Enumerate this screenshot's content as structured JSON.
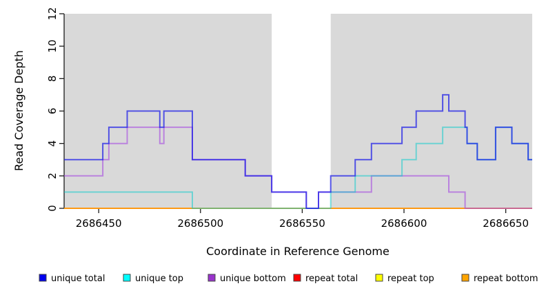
{
  "chart_data": {
    "type": "line",
    "subtype": "step-coverage-plot",
    "title": "",
    "xlabel": "Coordinate in Reference Genome",
    "ylabel": "Read Coverage Depth",
    "xlim": [
      2686433,
      2686663
    ],
    "ylim": [
      0,
      12
    ],
    "x_ticks": [
      2686450,
      2686500,
      2686550,
      2686600,
      2686650
    ],
    "y_ticks": [
      0,
      2,
      4,
      6,
      8,
      10,
      12
    ],
    "grid": "off",
    "legend_position": "bottom",
    "background_color": "#ffffff",
    "shaded_region_color": "#d9d9d9",
    "shaded_regions": [
      {
        "x0": 2686433,
        "x1": 2686535
      },
      {
        "x0": 2686564,
        "x1": 2686663
      }
    ],
    "series": [
      {
        "name": "repeat top",
        "color": "#f0f000",
        "opacity": 1,
        "steps": [
          [
            2686433,
            0
          ]
        ]
      },
      {
        "name": "repeat total",
        "color": "#e00000",
        "opacity": 1,
        "steps": [
          [
            2686433,
            0
          ]
        ]
      },
      {
        "name": "repeat bottom",
        "color": "#ff9912",
        "opacity": 1,
        "steps": [
          [
            2686433,
            0
          ]
        ]
      },
      {
        "name": "unique bottom",
        "color": "#a64ce0",
        "opacity": 0.62,
        "steps": [
          [
            2686433,
            2
          ],
          [
            2686452,
            3
          ],
          [
            2686455,
            4
          ],
          [
            2686464,
            5
          ],
          [
            2686480,
            4
          ],
          [
            2686482,
            5
          ],
          [
            2686496,
            3
          ],
          [
            2686522,
            2
          ],
          [
            2686535,
            1
          ],
          [
            2686552,
            0
          ],
          [
            2686558,
            1
          ],
          [
            2686584,
            2
          ],
          [
            2686622,
            1
          ],
          [
            2686630,
            0
          ]
        ]
      },
      {
        "name": "unique top",
        "color": "#00cccc",
        "opacity": 0.5,
        "steps": [
          [
            2686433,
            1
          ],
          [
            2686496,
            0
          ],
          [
            2686564,
            1
          ],
          [
            2686576,
            2
          ],
          [
            2686599,
            3
          ],
          [
            2686606,
            4
          ],
          [
            2686619,
            5
          ],
          [
            2686631,
            4
          ],
          [
            2686636,
            3
          ],
          [
            2686645,
            5
          ],
          [
            2686653,
            4
          ],
          [
            2686661,
            3
          ]
        ]
      },
      {
        "name": "unique total",
        "color": "#1c1ce8",
        "opacity": 0.72,
        "steps": [
          [
            2686433,
            3
          ],
          [
            2686452,
            4
          ],
          [
            2686455,
            5
          ],
          [
            2686464,
            6
          ],
          [
            2686480,
            5
          ],
          [
            2686482,
            6
          ],
          [
            2686496,
            3
          ],
          [
            2686522,
            2
          ],
          [
            2686535,
            1
          ],
          [
            2686552,
            0
          ],
          [
            2686558,
            1
          ],
          [
            2686564,
            2
          ],
          [
            2686576,
            3
          ],
          [
            2686584,
            4
          ],
          [
            2686599,
            5
          ],
          [
            2686606,
            6
          ],
          [
            2686619,
            7
          ],
          [
            2686622,
            6
          ],
          [
            2686630,
            5
          ],
          [
            2686631,
            4
          ],
          [
            2686636,
            3
          ],
          [
            2686645,
            5
          ],
          [
            2686653,
            4
          ],
          [
            2686661,
            3
          ]
        ]
      }
    ],
    "legend": [
      {
        "label": "unique total",
        "color": "#0000ee"
      },
      {
        "label": "unique top",
        "color": "#00ffff"
      },
      {
        "label": "unique bottom",
        "color": "#9933cc"
      },
      {
        "label": "repeat total",
        "color": "#ff0000"
      },
      {
        "label": "repeat top",
        "color": "#ffff00"
      },
      {
        "label": "repeat bottom",
        "color": "#ffa500"
      }
    ]
  }
}
